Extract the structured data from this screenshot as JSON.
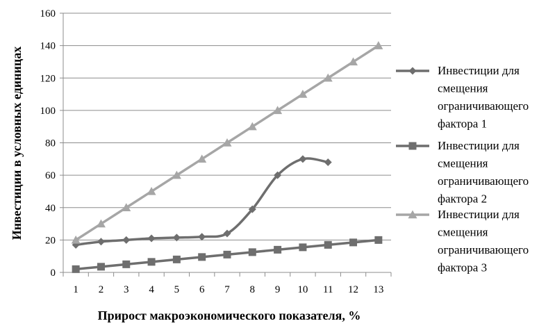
{
  "chart_data": {
    "type": "line",
    "title": "",
    "xlabel": "Прирост макроэкономического показателя, %",
    "ylabel": "Инвестиции в условных единицах",
    "ylim": [
      0,
      160
    ],
    "yticks": [
      0,
      20,
      40,
      60,
      80,
      100,
      120,
      140,
      160
    ],
    "x": [
      1,
      2,
      3,
      4,
      5,
      6,
      7,
      8,
      9,
      10,
      11,
      12,
      13
    ],
    "grid": "horizontal",
    "legend_position": "right",
    "series": [
      {
        "name": "Инвестиции для смещения ограничивающего фактора 1",
        "legend_lines": [
          "Инвестиции для",
          "смещения",
          "ограничивающего",
          "фактора 1"
        ],
        "marker": "diamond",
        "color": "#6e6e6e",
        "x": [
          1,
          2,
          3,
          4,
          5,
          6,
          7,
          8,
          9,
          10,
          11
        ],
        "values": [
          17,
          19,
          20,
          21,
          21.5,
          22,
          24,
          39,
          60,
          70,
          68
        ]
      },
      {
        "name": "Инвестиции для смещения ограничивающего фактора 2",
        "legend_lines": [
          "Инвестиции для",
          "смещения",
          "ограничивающего",
          "фактора 2"
        ],
        "marker": "square",
        "color": "#6e6e6e",
        "x": [
          1,
          2,
          3,
          4,
          5,
          6,
          7,
          8,
          9,
          10,
          11,
          12,
          13
        ],
        "values": [
          2,
          3.5,
          5,
          6.5,
          8,
          9.5,
          11,
          12.5,
          14,
          15.5,
          17,
          18.5,
          20
        ]
      },
      {
        "name": "Инвестиции для смещения ограничивающего фактора 3",
        "legend_lines": [
          "Инвестиции для",
          "смещения",
          "ограничивающего",
          "фактора 3"
        ],
        "marker": "triangle",
        "color": "#a6a6a6",
        "x": [
          1,
          2,
          3,
          4,
          5,
          6,
          7,
          8,
          9,
          10,
          11,
          12,
          13
        ],
        "values": [
          20,
          30,
          40,
          50,
          60,
          70,
          80,
          90,
          100,
          110,
          120,
          130,
          140
        ]
      }
    ]
  }
}
